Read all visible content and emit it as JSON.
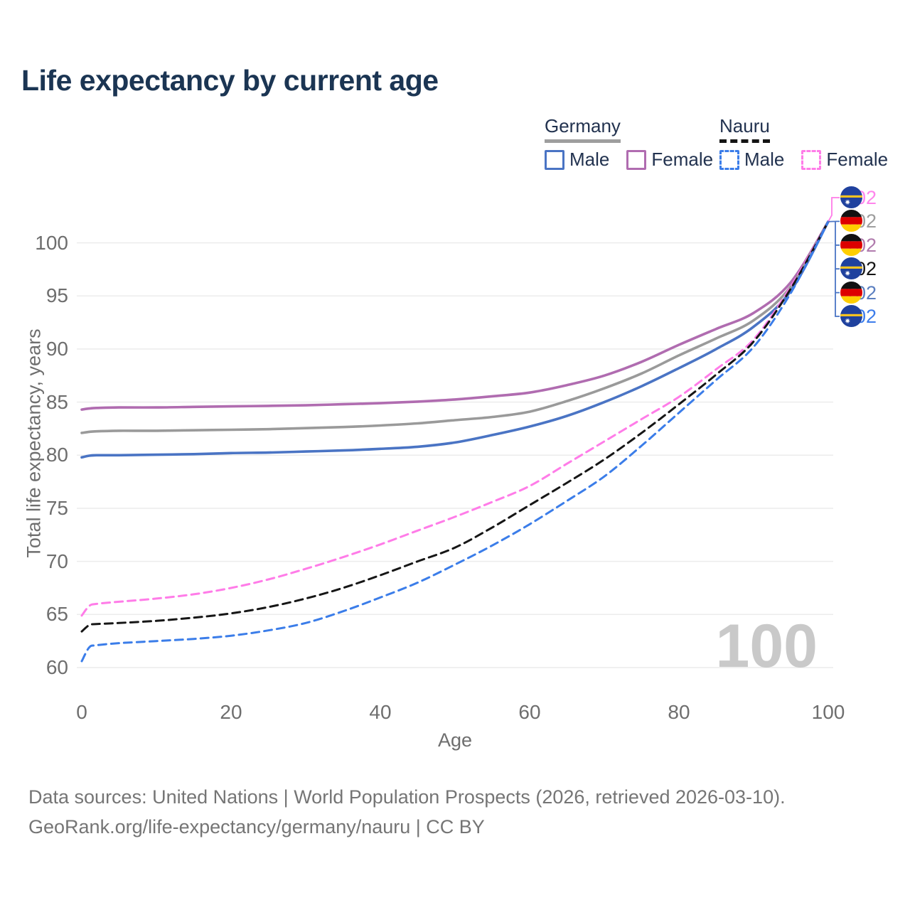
{
  "title": "Life expectancy by current age",
  "watermark": "100",
  "legend": {
    "groups": [
      {
        "label": "Germany",
        "underline_style": "solid",
        "underline_color": "#9e9e9e",
        "items": [
          {
            "label": "Male",
            "color": "#4a74c4",
            "dashed": false
          },
          {
            "label": "Female",
            "color": "#b06cb0",
            "dashed": false
          }
        ]
      },
      {
        "label": "Nauru",
        "underline_style": "dashed",
        "underline_color": "#141414",
        "items": [
          {
            "label": "Male",
            "color": "#3b7de9",
            "dashed": true
          },
          {
            "label": "Female",
            "color": "#ff7ce8",
            "dashed": true
          }
        ]
      }
    ]
  },
  "axes": {
    "x": {
      "label": "Age",
      "ticks": [
        0,
        20,
        40,
        60,
        80,
        100
      ],
      "range": [
        0,
        100
      ]
    },
    "y": {
      "label": "Total life expectancy, years",
      "ticks": [
        60,
        65,
        70,
        75,
        80,
        85,
        90,
        95,
        100
      ],
      "range": [
        58.5,
        104
      ]
    }
  },
  "chart_data": {
    "type": "line",
    "title": "Life expectancy by current age",
    "xlabel": "Age",
    "ylabel": "Total life expectancy, years",
    "grid": "horizontal",
    "legend_position": "top-right",
    "xlim": [
      0,
      100
    ],
    "ylim": [
      58.5,
      104
    ],
    "x": [
      0,
      1,
      2,
      5,
      10,
      15,
      20,
      25,
      30,
      35,
      40,
      45,
      50,
      55,
      60,
      65,
      70,
      75,
      80,
      85,
      90,
      95,
      100
    ],
    "series": [
      {
        "id": "germany-female",
        "name": "Germany Female",
        "country": "germany",
        "sex": "female",
        "color": "#b06cb0",
        "dashed": false,
        "values": [
          84.3,
          84.4,
          84.45,
          84.5,
          84.5,
          84.55,
          84.6,
          84.65,
          84.7,
          84.8,
          84.9,
          85.05,
          85.25,
          85.55,
          85.9,
          86.6,
          87.5,
          88.8,
          90.4,
          91.9,
          93.4,
          96.3,
          102
        ]
      },
      {
        "id": "germany-both",
        "name": "Germany Both sexes",
        "country": "germany",
        "sex": "both",
        "color": "#9a9a9a",
        "dashed": false,
        "values": [
          82.1,
          82.2,
          82.25,
          82.3,
          82.3,
          82.35,
          82.4,
          82.45,
          82.55,
          82.65,
          82.8,
          83.0,
          83.3,
          83.6,
          84.1,
          85.1,
          86.3,
          87.7,
          89.4,
          91.0,
          92.7,
          95.9,
          102
        ]
      },
      {
        "id": "germany-male",
        "name": "Germany Male",
        "country": "germany",
        "sex": "male",
        "color": "#4a74c4",
        "dashed": false,
        "values": [
          79.8,
          79.95,
          80.0,
          80.0,
          80.05,
          80.1,
          80.2,
          80.25,
          80.35,
          80.45,
          80.6,
          80.8,
          81.2,
          81.9,
          82.7,
          83.7,
          85.0,
          86.5,
          88.2,
          90.0,
          92.1,
          95.5,
          102
        ]
      },
      {
        "id": "nauru-female",
        "name": "Nauru Female",
        "country": "nauru",
        "sex": "female",
        "color": "#ff7ce8",
        "dashed": true,
        "values": [
          64.9,
          65.8,
          66.0,
          66.2,
          66.5,
          66.9,
          67.5,
          68.3,
          69.3,
          70.4,
          71.6,
          72.9,
          74.2,
          75.6,
          77.1,
          79.2,
          81.3,
          83.4,
          85.5,
          88.1,
          90.9,
          95.9,
          102
        ]
      },
      {
        "id": "nauru-both",
        "name": "Nauru Both sexes",
        "country": "nauru",
        "sex": "both",
        "color": "#161616",
        "dashed": true,
        "values": [
          63.4,
          64.0,
          64.1,
          64.2,
          64.4,
          64.7,
          65.1,
          65.7,
          66.5,
          67.5,
          68.7,
          70.0,
          71.3,
          73.2,
          75.3,
          77.4,
          79.6,
          82.1,
          84.8,
          87.6,
          90.7,
          95.7,
          102
        ]
      },
      {
        "id": "nauru-male",
        "name": "Nauru Male",
        "country": "nauru",
        "sex": "male",
        "color": "#3b7de9",
        "dashed": true,
        "values": [
          60.6,
          61.9,
          62.1,
          62.3,
          62.5,
          62.7,
          63.0,
          63.5,
          64.2,
          65.3,
          66.6,
          68.0,
          69.7,
          71.5,
          73.5,
          75.7,
          78.0,
          80.9,
          84.0,
          87.1,
          90.2,
          95.3,
          102
        ]
      }
    ]
  },
  "callout": {
    "rows": [
      {
        "flag": "nauru",
        "value": "102",
        "color": "#ff85ec"
      },
      {
        "flag": "germany",
        "value": "102",
        "color": "#9e9e9e"
      },
      {
        "flag": "germany",
        "value": "102",
        "color": "#b07bad"
      },
      {
        "flag": "nauru",
        "value": "102",
        "color": "#141414"
      },
      {
        "flag": "germany",
        "value": "102",
        "color": "#5b7fc0"
      },
      {
        "flag": "nauru",
        "value": "102",
        "color": "#3d7deb"
      }
    ]
  },
  "footer": {
    "line1": "Data sources: United Nations | World Population Prospects (2026, retrieved 2026-03-10).",
    "line2": "GeoRank.org/life-expectancy/germany/nauru | CC BY"
  }
}
